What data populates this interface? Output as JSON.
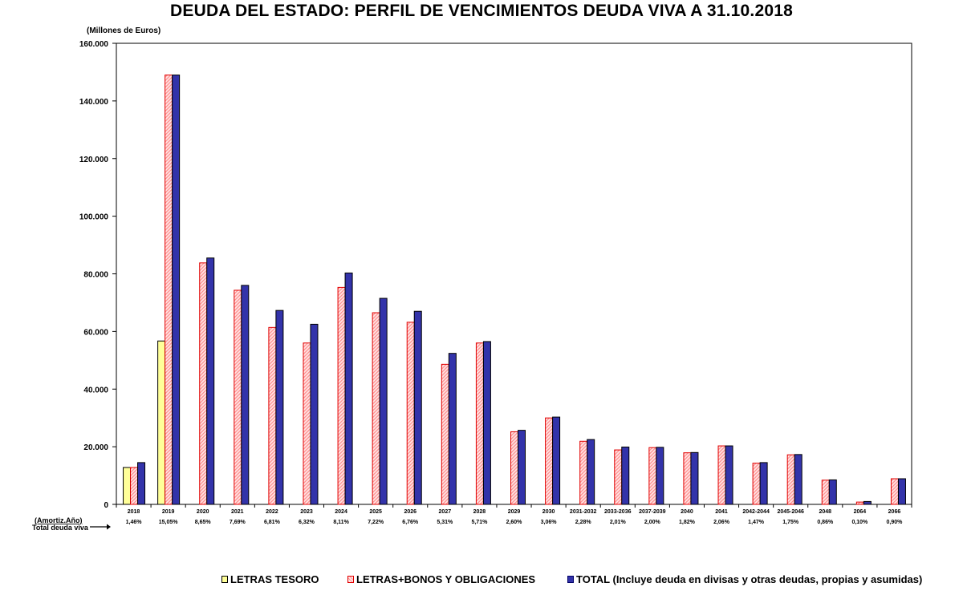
{
  "chart_data": {
    "type": "bar",
    "title": "DEUDA DEL ESTADO: PERFIL DE VENCIMIENTOS DEUDA VIVA A 31.10.2018",
    "ylabel": "(Millones de Euros)",
    "ylim": [
      0,
      160000
    ],
    "yticks": [
      {
        "value": 0,
        "label": "0"
      },
      {
        "value": 20000,
        "label": "20.000"
      },
      {
        "value": 40000,
        "label": "40.000"
      },
      {
        "value": 60000,
        "label": "60.000"
      },
      {
        "value": 80000,
        "label": "80.000"
      },
      {
        "value": 100000,
        "label": "100.000"
      },
      {
        "value": 120000,
        "label": "120.000"
      },
      {
        "value": 140000,
        "label": "140.000"
      },
      {
        "value": 160000,
        "label": "160.000"
      }
    ],
    "categories": [
      "2018",
      "2019",
      "2020",
      "2021",
      "2022",
      "2023",
      "2024",
      "2025",
      "2026",
      "2027",
      "2028",
      "2029",
      "2030",
      "2031-2032",
      "2033-2036",
      "2037-2039",
      "2040",
      "2041",
      "2042-2044",
      "2045-2046",
      "2048",
      "2064",
      "2066"
    ],
    "amortization_label": "(Amortiz.Año)",
    "amortization_pct": [
      "1,46%",
      "15,05%",
      "8,65%",
      "7,69%",
      "6,81%",
      "6,32%",
      "8,11%",
      "7,22%",
      "6,76%",
      "5,31%",
      "5,71%",
      "2,60%",
      "3,06%",
      "2,28%",
      "2,01%",
      "2,00%",
      "1,82%",
      "2,06%",
      "1,47%",
      "1,75%",
      "0,86%",
      "0,10%",
      "0,90%"
    ],
    "total_label": "Total deuda viva",
    "series": [
      {
        "name": "LETRAS TESORO",
        "color": "#ffff99",
        "values": [
          12800,
          56700,
          null,
          null,
          null,
          null,
          null,
          null,
          null,
          null,
          null,
          null,
          null,
          null,
          null,
          null,
          null,
          null,
          null,
          null,
          null,
          null,
          null
        ]
      },
      {
        "name": "LETRAS+BONOS Y OBLIGACIONES",
        "color": "#ff9a9a",
        "values": [
          12800,
          149000,
          83800,
          74300,
          61400,
          56000,
          75300,
          66500,
          63200,
          48600,
          56000,
          25200,
          30000,
          21900,
          18900,
          19700,
          17900,
          20300,
          14300,
          17200,
          8400,
          800,
          8900
        ]
      },
      {
        "name": "TOTAL (Incluye deuda en divisas y otras deudas, propias y asumidas)",
        "color": "#3333aa",
        "values": [
          14500,
          149000,
          85500,
          76000,
          67300,
          62500,
          80300,
          71500,
          67000,
          52400,
          56500,
          25700,
          30300,
          22500,
          19900,
          19800,
          18000,
          20300,
          14500,
          17300,
          8500,
          1000,
          8900
        ]
      }
    ]
  }
}
